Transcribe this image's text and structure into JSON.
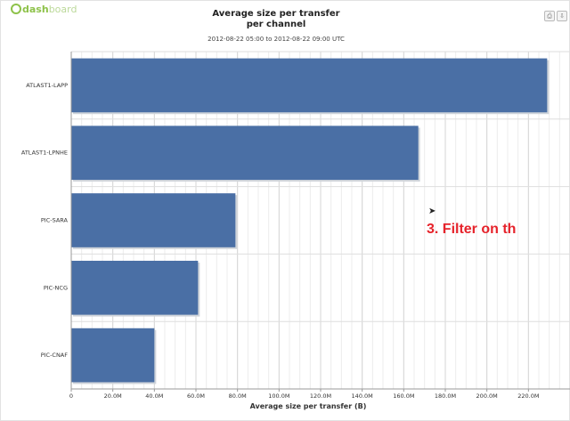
{
  "brand": {
    "main": "dash",
    "sub": "board"
  },
  "toolbar": {
    "icons": [
      "print-icon",
      "download-icon"
    ]
  },
  "annotation": "3. Filter on th",
  "chart_data": {
    "type": "bar",
    "orientation": "horizontal",
    "title": "Average size per transfer",
    "title_line2": "per channel",
    "subtitle": "2012-08-22 05:00 to 2012-08-22 09:00 UTC",
    "xlabel": "Average size per transfer (B)",
    "ylabel": "",
    "categories": [
      "ATLAST1-LAPP",
      "ATLAST1-LPNHE",
      "PIC-SARA",
      "PIC-NCG",
      "PIC-CNAF"
    ],
    "values": [
      229000000,
      167000000,
      79000000,
      61000000,
      40000000
    ],
    "xlim": [
      0,
      240000000
    ],
    "xticks": [
      0,
      20000000,
      40000000,
      60000000,
      80000000,
      100000000,
      120000000,
      140000000,
      160000000,
      180000000,
      200000000,
      220000000
    ],
    "xtick_labels": [
      "0",
      "20.0M",
      "40.0M",
      "60.0M",
      "80.0M",
      "100.0M",
      "120.0M",
      "140.0M",
      "160.0M",
      "180.0M",
      "200.0M",
      "220.0M"
    ],
    "grid": true,
    "bar_color": "#4a6fa5"
  }
}
